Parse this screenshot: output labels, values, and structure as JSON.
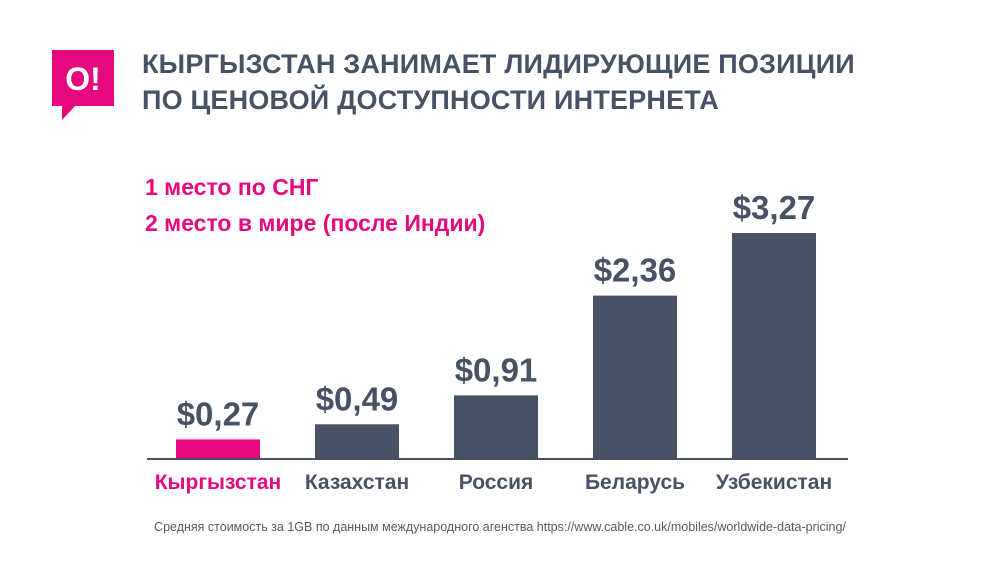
{
  "logo": {
    "text": "O!"
  },
  "title_lines": [
    "КЫРГЫЗСТАН ЗАНИМАЕТ ЛИДИРУЮЩИЕ ПОЗИЦИИ",
    "ПО ЦЕНОВОЙ ДОСТУПНОСТИ ИНТЕРНЕТА"
  ],
  "notes": [
    "1 место по СНГ",
    "2 место в мире (после Индии)"
  ],
  "chart_data": {
    "type": "bar",
    "categories": [
      "Кыргызстан",
      "Казахстан",
      "Россия",
      "Беларусь",
      "Узбекистан"
    ],
    "values": [
      0.27,
      0.49,
      0.91,
      2.36,
      3.27
    ],
    "value_labels": [
      "$0,27",
      "$0,49",
      "$0,91",
      "$2,36",
      "$3,27"
    ],
    "highlight_index": 0,
    "colors": {
      "bar": "#475265",
      "highlight": "#e6097d",
      "axis": "#475265"
    },
    "title": "",
    "xlabel": "",
    "ylabel": "",
    "ylim": [
      0,
      3.27
    ],
    "grid": false
  },
  "footnote": "Средняя стоимость за 1GB по данным международного агенства https://www.cable.co.uk/mobiles/worldwide-data-pricing/"
}
